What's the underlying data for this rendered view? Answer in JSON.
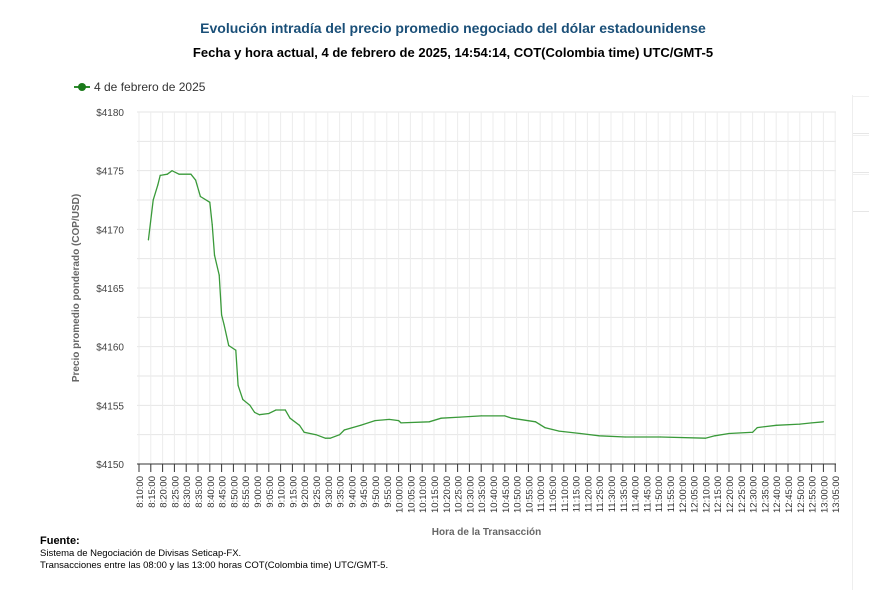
{
  "chart_data": {
    "type": "line",
    "title": "Evolución intradía del precio promedio negociado del dólar estadounidense",
    "subtitle": "Fecha y hora actual, 4 de febrero de 2025, 14:54:14, COT(Colombia time) UTC/GMT-5",
    "xlabel": "Hora de la Transacción",
    "ylabel": "Precio promedio ponderado (COP/USD)",
    "ylim": [
      4150,
      4180
    ],
    "y_ticks": [
      "$4150",
      "$4155",
      "$4160",
      "$4165",
      "$4170",
      "$4175",
      "$4180"
    ],
    "x_ticks": [
      "8:10:00",
      "8:15:00",
      "8:20:00",
      "8:25:00",
      "8:30:00",
      "8:35:00",
      "8:40:00",
      "8:45:00",
      "8:50:00",
      "8:55:00",
      "9:00:00",
      "9:05:00",
      "9:10:00",
      "9:15:00",
      "9:20:00",
      "9:25:00",
      "9:30:00",
      "9:35:00",
      "9:40:00",
      "9:45:00",
      "9:50:00",
      "9:55:00",
      "10:00:00",
      "10:05:00",
      "10:10:00",
      "10:15:00",
      "10:20:00",
      "10:25:00",
      "10:30:00",
      "10:35:00",
      "10:40:00",
      "10:45:00",
      "10:50:00",
      "10:55:00",
      "11:00:00",
      "11:05:00",
      "11:10:00",
      "11:15:00",
      "11:20:00",
      "11:25:00",
      "11:30:00",
      "11:35:00",
      "11:40:00",
      "11:45:00",
      "11:50:00",
      "11:55:00",
      "12:00:00",
      "12:05:00",
      "12:10:00",
      "12:15:00",
      "12:20:00",
      "12:25:00",
      "12:30:00",
      "12:35:00",
      "12:40:00",
      "12:45:00",
      "12:50:00",
      "12:55:00",
      "13:00:00",
      "13:05:00"
    ],
    "grid": true,
    "legend_position": "top-left",
    "series": [
      {
        "name": "4 de febrero de 2025",
        "color": "#3a9a3a",
        "x": [
          "8:14",
          "8:16",
          "8:18",
          "8:19",
          "8:22",
          "8:24",
          "8:27",
          "8:32",
          "8:34",
          "8:36",
          "8:40",
          "8:41",
          "8:42",
          "8:44",
          "8:45",
          "8:46",
          "8:48",
          "8:51",
          "8:52",
          "8:54",
          "8:57",
          "8:59",
          "9:01",
          "9:05",
          "9:08",
          "9:12",
          "9:14",
          "9:18",
          "9:20",
          "9:25",
          "9:29",
          "9:31",
          "9:35",
          "9:37",
          "9:44",
          "9:50",
          "9:56",
          "10:00",
          "10:01",
          "10:13",
          "10:18",
          "10:26",
          "10:35",
          "10:45",
          "10:48",
          "10:58",
          "11:02",
          "11:08",
          "11:17",
          "11:25",
          "11:36",
          "11:51",
          "12:10",
          "12:14",
          "12:20",
          "12:30",
          "12:32",
          "12:40",
          "12:50",
          "12:55",
          "13:00"
        ],
        "y": [
          4169.1,
          4172.5,
          4173.8,
          4174.6,
          4174.7,
          4175.0,
          4174.7,
          4174.7,
          4174.2,
          4172.8,
          4172.3,
          4170.4,
          4167.8,
          4166.1,
          4162.7,
          4161.9,
          4160.1,
          4159.7,
          4156.7,
          4155.5,
          4155.0,
          4154.4,
          4154.2,
          4154.3,
          4154.6,
          4154.6,
          4153.9,
          4153.3,
          4152.7,
          4152.5,
          4152.2,
          4152.2,
          4152.5,
          4152.9,
          4153.3,
          4153.7,
          4153.8,
          4153.7,
          4153.5,
          4153.6,
          4153.9,
          4154.0,
          4154.1,
          4154.1,
          4153.9,
          4153.6,
          4153.1,
          4152.8,
          4152.6,
          4152.4,
          4152.3,
          4152.3,
          4152.2,
          4152.4,
          4152.6,
          4152.7,
          4153.1,
          4153.3,
          4153.4,
          4153.5,
          4153.6
        ]
      }
    ]
  },
  "source": {
    "heading": "Fuente:",
    "line1": "Sistema de Negociación de Divisas Seticap-FX.",
    "line2": "Transacciones entre las 08:00 y las 13:00 horas COT(Colombia time) UTC/GMT-5."
  }
}
